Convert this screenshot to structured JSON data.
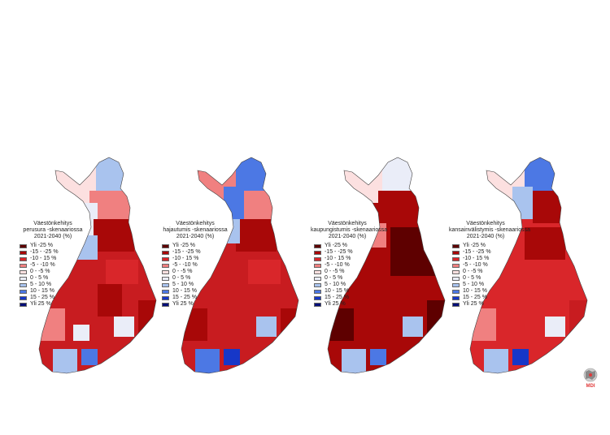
{
  "legend": {
    "items": [
      {
        "label": "Yli -25 %",
        "color": "#5e0000"
      },
      {
        "label": "-15 - -25 %",
        "color": "#a80808"
      },
      {
        "label": "-10 - 15 %",
        "color": "#d9262a"
      },
      {
        "label": "-5 - -10 %",
        "color": "#f08080"
      },
      {
        "label": "0 - -5 %",
        "color": "#fce0e0"
      },
      {
        "label": "0 - 5 %",
        "color": "#eaedf8"
      },
      {
        "label": "5 - 10 %",
        "color": "#a9c3ee"
      },
      {
        "label": "10 - 15 %",
        "color": "#4c78e4"
      },
      {
        "label": "15 - 25 %",
        "color": "#1637c8"
      },
      {
        "label": "Yli 25 %",
        "color": "#050f78"
      }
    ]
  },
  "maps": [
    {
      "title_line1": "Väestönkehitys",
      "title_line2": "perusura -skenaariossa",
      "title_line3": "2021-2040 (%)"
    },
    {
      "title_line1": "Väestönkehitys",
      "title_line2": "hajautumis -skenaariossa",
      "title_line3": "2021-2040 (%)"
    },
    {
      "title_line1": "Väestönkehitys",
      "title_line2": "kaupungistumis -skenaariossa",
      "title_line3": "2021-2040 (%)"
    },
    {
      "title_line1": "Väestönkehitys",
      "title_line2": "kansainvälistymis -skenaariossa",
      "title_line3": "2021-2040 (%)"
    }
  ],
  "logo": {
    "text": "MDI",
    "icon": "mdi-logo-icon",
    "color": "#e03a3a"
  }
}
